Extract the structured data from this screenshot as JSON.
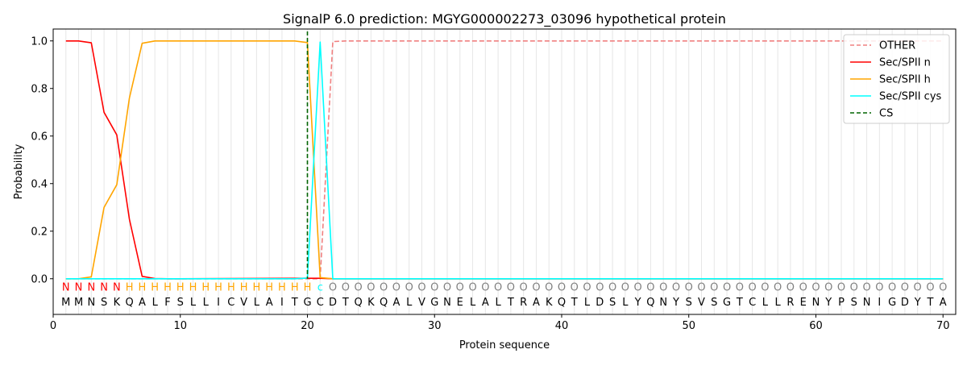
{
  "chart_data": {
    "type": "line",
    "title": "SignalP 6.0 prediction: MGYG000002273_03096 hypothetical protein",
    "xlabel": "Protein sequence",
    "ylabel": "Probability",
    "xlim": [
      0,
      71
    ],
    "ylim": [
      -0.15,
      1.05
    ],
    "x_ticks": [
      0,
      10,
      20,
      30,
      40,
      50,
      60,
      70
    ],
    "y_ticks": [
      0.0,
      0.2,
      0.4,
      0.6,
      0.8,
      1.0
    ],
    "x_tick_labels": [
      "0",
      "10",
      "20",
      "30",
      "40",
      "50",
      "60",
      "70"
    ],
    "y_tick_labels": [
      "0.0",
      "0.2",
      "0.4",
      "0.6",
      "0.8",
      "1.0"
    ],
    "grid": "vertical lines at each residue",
    "legend_position": "top-right",
    "sequence": [
      "M",
      "M",
      "N",
      "S",
      "K",
      "Q",
      "A",
      "L",
      "F",
      "S",
      "L",
      "L",
      "I",
      "C",
      "V",
      "L",
      "A",
      "I",
      "T",
      "G",
      "C",
      "D",
      "T",
      "Q",
      "K",
      "Q",
      "A",
      "L",
      "V",
      "G",
      "N",
      "E",
      "L",
      "A",
      "L",
      "T",
      "R",
      "A",
      "K",
      "Q",
      "T",
      "L",
      "D",
      "S",
      "L",
      "Y",
      "Q",
      "N",
      "Y",
      "S",
      "V",
      "S",
      "G",
      "T",
      "C",
      "L",
      "L",
      "R",
      "E",
      "N",
      "Y",
      "P",
      "S",
      "N",
      "I",
      "G",
      "D",
      "Y",
      "T",
      "A"
    ],
    "labels": [
      "N",
      "N",
      "N",
      "N",
      "N",
      "H",
      "H",
      "H",
      "H",
      "H",
      "H",
      "H",
      "H",
      "H",
      "H",
      "H",
      "H",
      "H",
      "H",
      "H",
      "c",
      "O",
      "O",
      "O",
      "O",
      "O",
      "O",
      "O",
      "O",
      "O",
      "O",
      "O",
      "O",
      "O",
      "O",
      "O",
      "O",
      "O",
      "O",
      "O",
      "O",
      "O",
      "O",
      "O",
      "O",
      "O",
      "O",
      "O",
      "O",
      "O",
      "O",
      "O",
      "O",
      "O",
      "O",
      "O",
      "O",
      "O",
      "O",
      "O",
      "O",
      "O",
      "O",
      "O",
      "O",
      "O",
      "O",
      "O",
      "O",
      "O"
    ],
    "label_colors": {
      "N": "#ff0000",
      "H": "#ffa500",
      "c": "#00ffff",
      "O": "#808080"
    },
    "series": [
      {
        "name": "OTHER",
        "color": "#f08080",
        "dash": true,
        "x": [
          1,
          20,
          21,
          22,
          23,
          70
        ],
        "y": [
          0.0,
          0.0,
          0.0,
          0.997,
          1.0,
          1.0
        ]
      },
      {
        "name": "Sec/SPII n",
        "color": "#ff0000",
        "dash": false,
        "x": [
          1,
          2,
          3,
          4,
          5,
          6,
          7,
          8,
          9,
          10,
          20,
          21,
          22,
          70
        ],
        "y": [
          1.0,
          1.0,
          0.992,
          0.7,
          0.605,
          0.25,
          0.01,
          0.001,
          0.0,
          0.0,
          0.002,
          0.002,
          0.0,
          0.0
        ]
      },
      {
        "name": "Sec/SPII h",
        "color": "#ffa500",
        "dash": false,
        "x": [
          1,
          2,
          3,
          4,
          5,
          6,
          7,
          8,
          9,
          19,
          20,
          21,
          22,
          70
        ],
        "y": [
          0.0,
          0.0,
          0.008,
          0.3,
          0.395,
          0.76,
          0.99,
          1.0,
          1.0,
          1.0,
          0.993,
          0.005,
          0.0,
          0.0
        ]
      },
      {
        "name": "Sec/SPII cys",
        "color": "#00ffff",
        "dash": false,
        "x": [
          1,
          19,
          20,
          21,
          22,
          70
        ],
        "y": [
          0.0,
          0.0,
          0.003,
          0.995,
          0.0,
          0.0
        ]
      },
      {
        "name": "CS",
        "color": "#006400",
        "dash": true,
        "vline_x": 20
      }
    ]
  }
}
